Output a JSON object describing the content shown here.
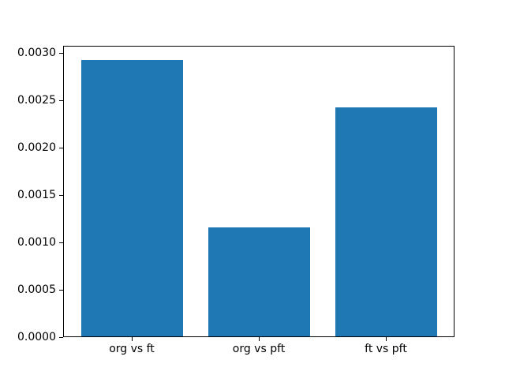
{
  "chart_data": {
    "type": "bar",
    "categories": [
      "org vs ft",
      "org vs pft",
      "ft vs pft"
    ],
    "values": [
      0.00293,
      0.00116,
      0.00243
    ],
    "title": "",
    "xlabel": "",
    "ylabel": "",
    "ylim": [
      0,
      0.003077
    ],
    "yticks": [
      0.0,
      0.0005,
      0.001,
      0.0015,
      0.002,
      0.0025,
      0.003
    ],
    "ytick_labels": [
      "0.0000",
      "0.0005",
      "0.0010",
      "0.0015",
      "0.0020",
      "0.0025",
      "0.0030"
    ],
    "bar_color": "#1f77b4",
    "spine_color": "#000000",
    "background_color": "#ffffff",
    "grid": false,
    "legend": null
  }
}
